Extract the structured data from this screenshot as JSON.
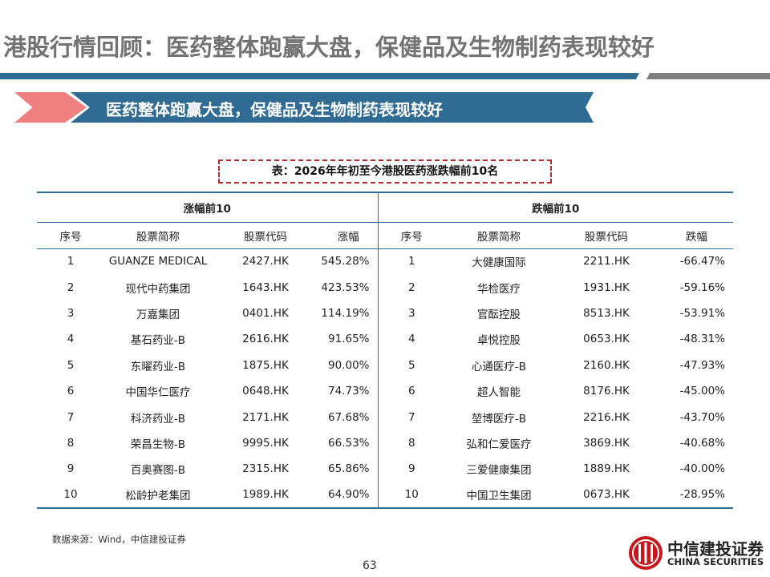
{
  "title": "港股行情回顾：医药整体跑赢大盘，保健品及生物制药表现较好",
  "banner": "医药整体跑赢大盘，保健品及生物制药表现较好",
  "caption": "表：2026年年初至今港股医药涨跌幅前10名",
  "table": {
    "gainers_header": "涨幅前10",
    "losers_header": "跌幅前10",
    "gainers_columns": [
      "序号",
      "股票简称",
      "股票代码",
      "涨幅"
    ],
    "losers_columns": [
      "序号",
      "股票简称",
      "股票代码",
      "跌幅"
    ],
    "rows": [
      {
        "g": [
          "1",
          "GUANZE MEDICAL",
          "2427.HK",
          "545.28%"
        ],
        "l": [
          "1",
          "大健康国际",
          "2211.HK",
          "-66.47%"
        ]
      },
      {
        "g": [
          "2",
          "现代中药集团",
          "1643.HK",
          "423.53%"
        ],
        "l": [
          "2",
          "华检医疗",
          "1931.HK",
          "-59.16%"
        ]
      },
      {
        "g": [
          "3",
          "万嘉集团",
          "0401.HK",
          "114.19%"
        ],
        "l": [
          "3",
          "官酝控股",
          "8513.HK",
          "-53.91%"
        ]
      },
      {
        "g": [
          "4",
          "基石药业-B",
          "2616.HK",
          "91.65%"
        ],
        "l": [
          "4",
          "卓悦控股",
          "0653.HK",
          "-48.31%"
        ]
      },
      {
        "g": [
          "5",
          "东曜药业-B",
          "1875.HK",
          "90.00%"
        ],
        "l": [
          "5",
          "心通医疗-B",
          "2160.HK",
          "-47.93%"
        ]
      },
      {
        "g": [
          "6",
          "中国华仁医疗",
          "0648.HK",
          "74.73%"
        ],
        "l": [
          "6",
          "超人智能",
          "8176.HK",
          "-45.00%"
        ]
      },
      {
        "g": [
          "7",
          "科济药业-B",
          "2171.HK",
          "67.68%"
        ],
        "l": [
          "7",
          "堃博医疗-B",
          "2216.HK",
          "-43.70%"
        ]
      },
      {
        "g": [
          "8",
          "荣昌生物-B",
          "9995.HK",
          "66.53%"
        ],
        "l": [
          "8",
          "弘和仁爱医疗",
          "3869.HK",
          "-40.68%"
        ]
      },
      {
        "g": [
          "9",
          "百奥赛图-B",
          "2315.HK",
          "65.86%"
        ],
        "l": [
          "9",
          "三爱健康集团",
          "1889.HK",
          "-40.00%"
        ]
      },
      {
        "g": [
          "10",
          "松龄护老集团",
          "1989.HK",
          "64.90%"
        ],
        "l": [
          "10",
          "中国卫生集团",
          "0673.HK",
          "-28.95%"
        ]
      }
    ]
  },
  "source": "数据来源：Wind，中信建投证券",
  "page_number": "63",
  "logo": {
    "cn": "中信建投证券",
    "en": "CHINA SECURITIES"
  },
  "colors": {
    "accent_blue": "#2f6b93",
    "accent_pink": "#f08080",
    "logo_red": "#c8161d",
    "title_gray": "#737373"
  }
}
